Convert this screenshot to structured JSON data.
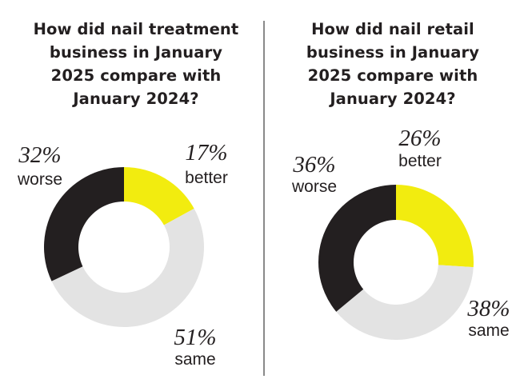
{
  "chart_data": [
    {
      "type": "pie",
      "variant": "donut",
      "title": "How did nail treatment business in January 2025 compare with January 2024?",
      "title_lines": [
        "How did nail treatment",
        "business in January",
        "2025 compare with",
        "January 2024?"
      ],
      "slices": [
        {
          "label": "better",
          "value": 17,
          "display": "17%",
          "color": "#f2ec0f"
        },
        {
          "label": "same",
          "value": 51,
          "display": "51%",
          "color": "#e3e3e3"
        },
        {
          "label": "worse",
          "value": 32,
          "display": "32%",
          "color": "#231f20"
        }
      ],
      "start_angle": "12 o'clock",
      "direction": "clockwise"
    },
    {
      "type": "pie",
      "variant": "donut",
      "title": "How did nail retail business in January 2025 compare with January 2024?",
      "title_lines": [
        "How did nail retail",
        "business in January",
        "2025 compare with",
        "January 2024?"
      ],
      "slices": [
        {
          "label": "better",
          "value": 26,
          "display": "26%",
          "color": "#f2ec0f"
        },
        {
          "label": "same",
          "value": 38,
          "display": "38%",
          "color": "#e3e3e3"
        },
        {
          "label": "worse",
          "value": 36,
          "display": "36%",
          "color": "#231f20"
        }
      ],
      "start_angle": "12 o'clock",
      "direction": "clockwise"
    }
  ]
}
